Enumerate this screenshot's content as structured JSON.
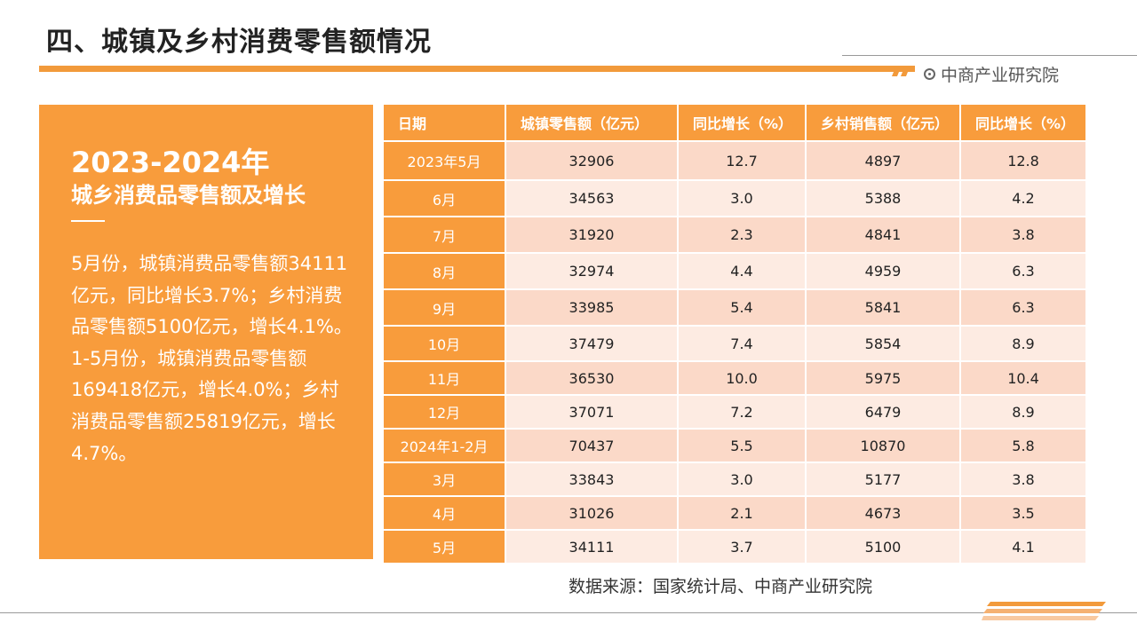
{
  "title": "四、城镇及乡村消费零售额情况",
  "brand": "中商产业研究院",
  "panel": {
    "year": "2023-2024年",
    "heading": "城乡消费品零售额及增长",
    "body": "5月份，城镇消费品零售额34111亿元，同比增长3.7%；乡村消费品零售额5100亿元，增长4.1%。1-5月份，城镇消费品零售额169418亿元，增长4.0%；乡村消费品零售额25819亿元，增长4.7%。"
  },
  "table": {
    "headers": [
      "日期",
      "城镇零售额（亿元）",
      "同比增长（%）",
      "乡村销售额（亿元）",
      "同比增长（%）"
    ],
    "rows": [
      [
        "2023年5月",
        "32906",
        "12.7",
        "4897",
        "12.8"
      ],
      [
        "6月",
        "34563",
        "3.0",
        "5388",
        "4.2"
      ],
      [
        "7月",
        "31920",
        "2.3",
        "4841",
        "3.8"
      ],
      [
        "8月",
        "32974",
        "4.4",
        "4959",
        "6.3"
      ],
      [
        "9月",
        "33985",
        "5.4",
        "5841",
        "6.3"
      ],
      [
        "10月",
        "37479",
        "7.4",
        "5854",
        "8.9"
      ],
      [
        "11月",
        "36530",
        "10.0",
        "5975",
        "10.4"
      ],
      [
        "12月",
        "37071",
        "7.2",
        "6479",
        "8.9"
      ],
      [
        "2024年1-2月",
        "70437",
        "5.5",
        "10870",
        "5.8"
      ],
      [
        "3月",
        "33843",
        "3.0",
        "5177",
        "3.8"
      ],
      [
        "4月",
        "31026",
        "2.1",
        "4673",
        "3.5"
      ],
      [
        "5月",
        "34111",
        "3.7",
        "5100",
        "4.1"
      ]
    ]
  },
  "source": "数据来源：国家统计局、中商产业研究院",
  "colors": {
    "accent": "#f89c3c",
    "row_odd": "#fbd9c8",
    "row_even": "#fdebe2"
  },
  "icons": {
    "brand": "target-icon"
  }
}
